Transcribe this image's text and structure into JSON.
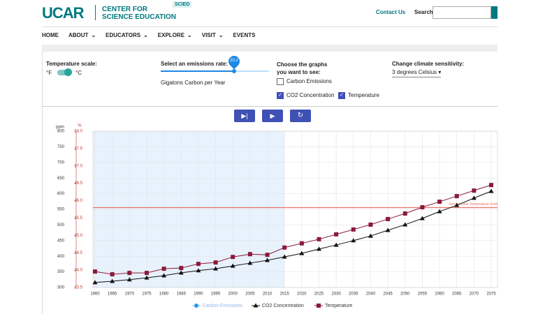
{
  "header": {
    "logo": "UCAR",
    "subtitle_line1": "CENTER FOR",
    "subtitle_line2": "SCIENCE EDUCATION",
    "badge": "SCIED",
    "contact": "Contact Us",
    "search_label": "Search"
  },
  "nav": [
    "HOME",
    "ABOUT",
    "EDUCATORS",
    "EXPLORE",
    "VISIT",
    "EVENTS"
  ],
  "controls": {
    "temp_scale_label": "Temperature scale:",
    "unit_f": "°F",
    "unit_c": "°C",
    "emissions_label": "Select an emissions rate:",
    "emissions_value": 20.2,
    "emissions_unit": "Gigatons Carbon per Year",
    "graphs_label": "Choose the graphs you want to see:",
    "graphs": [
      {
        "label": "Carbon Emissions",
        "checked": false
      },
      {
        "label": "CO2 Concentration",
        "checked": true
      },
      {
        "label": "Temperature",
        "checked": true
      }
    ],
    "sensitivity_label": "Change climate sensitivity:",
    "sensitivity_value": "3 degrees Celsius"
  },
  "chart_data": {
    "type": "line",
    "x": [
      1960,
      1965,
      1970,
      1975,
      1980,
      1985,
      1990,
      1995,
      2000,
      2005,
      2010,
      2015,
      2020,
      2025,
      2030,
      2035,
      2040,
      2045,
      2050,
      2055,
      2060,
      2065,
      2070,
      2075
    ],
    "xlim": [
      1960,
      2075
    ],
    "xticks": [
      1960,
      1965,
      1970,
      1975,
      1980,
      1985,
      1990,
      1995,
      2000,
      2005,
      2010,
      2015,
      2020,
      2025,
      2030,
      2035,
      2040,
      2045,
      2050,
      2055,
      2060,
      2065,
      2070,
      2075
    ],
    "ylabel": "ppm",
    "ylim": [
      300,
      800
    ],
    "yticks": [
      300,
      350,
      400,
      450,
      500,
      550,
      600,
      650,
      700,
      750,
      800
    ],
    "y2label": "%",
    "y2lim": [
      13.5,
      18
    ],
    "y2ticks": [
      13.5,
      {
        "value": 14,
        "label": "14.0"
      },
      14.5,
      {
        "value": 15,
        "label": "15.0"
      },
      15.5,
      {
        "value": 16,
        "label": "16.0"
      },
      16.5,
      {
        "value": 17,
        "label": "17.0"
      },
      17.5,
      {
        "value": 18,
        "label": "18.0"
      }
    ],
    "shaded_range": [
      1960,
      2015
    ],
    "limit": {
      "value": 15.8,
      "label": "Summertime Temperature Limit",
      "axis": "y2",
      "color": "#e57368"
    },
    "series": [
      {
        "name": "Carbon Emissions",
        "color": "#2196f3",
        "marker": "circle",
        "disabled": true,
        "values": null
      },
      {
        "name": "CO2 Concentration",
        "color": "#111111",
        "marker": "triangle",
        "values": [
          316,
          320,
          325,
          331,
          338,
          347,
          354,
          360,
          369,
          378,
          387,
          398,
          409,
          423,
          436,
          450,
          465,
          483,
          501,
          521,
          543,
          563,
          586,
          608
        ]
      },
      {
        "name": "Temperature",
        "color": "#8b1a3a",
        "marker": "square",
        "axis": "y2",
        "values": [
          13.96,
          13.88,
          13.92,
          13.92,
          14.04,
          14.06,
          14.18,
          14.22,
          14.38,
          14.46,
          14.44,
          14.65,
          14.77,
          14.89,
          15.03,
          15.17,
          15.31,
          15.47,
          15.63,
          15.81,
          15.97,
          16.13,
          16.29,
          16.45
        ]
      }
    ],
    "grid": true
  }
}
